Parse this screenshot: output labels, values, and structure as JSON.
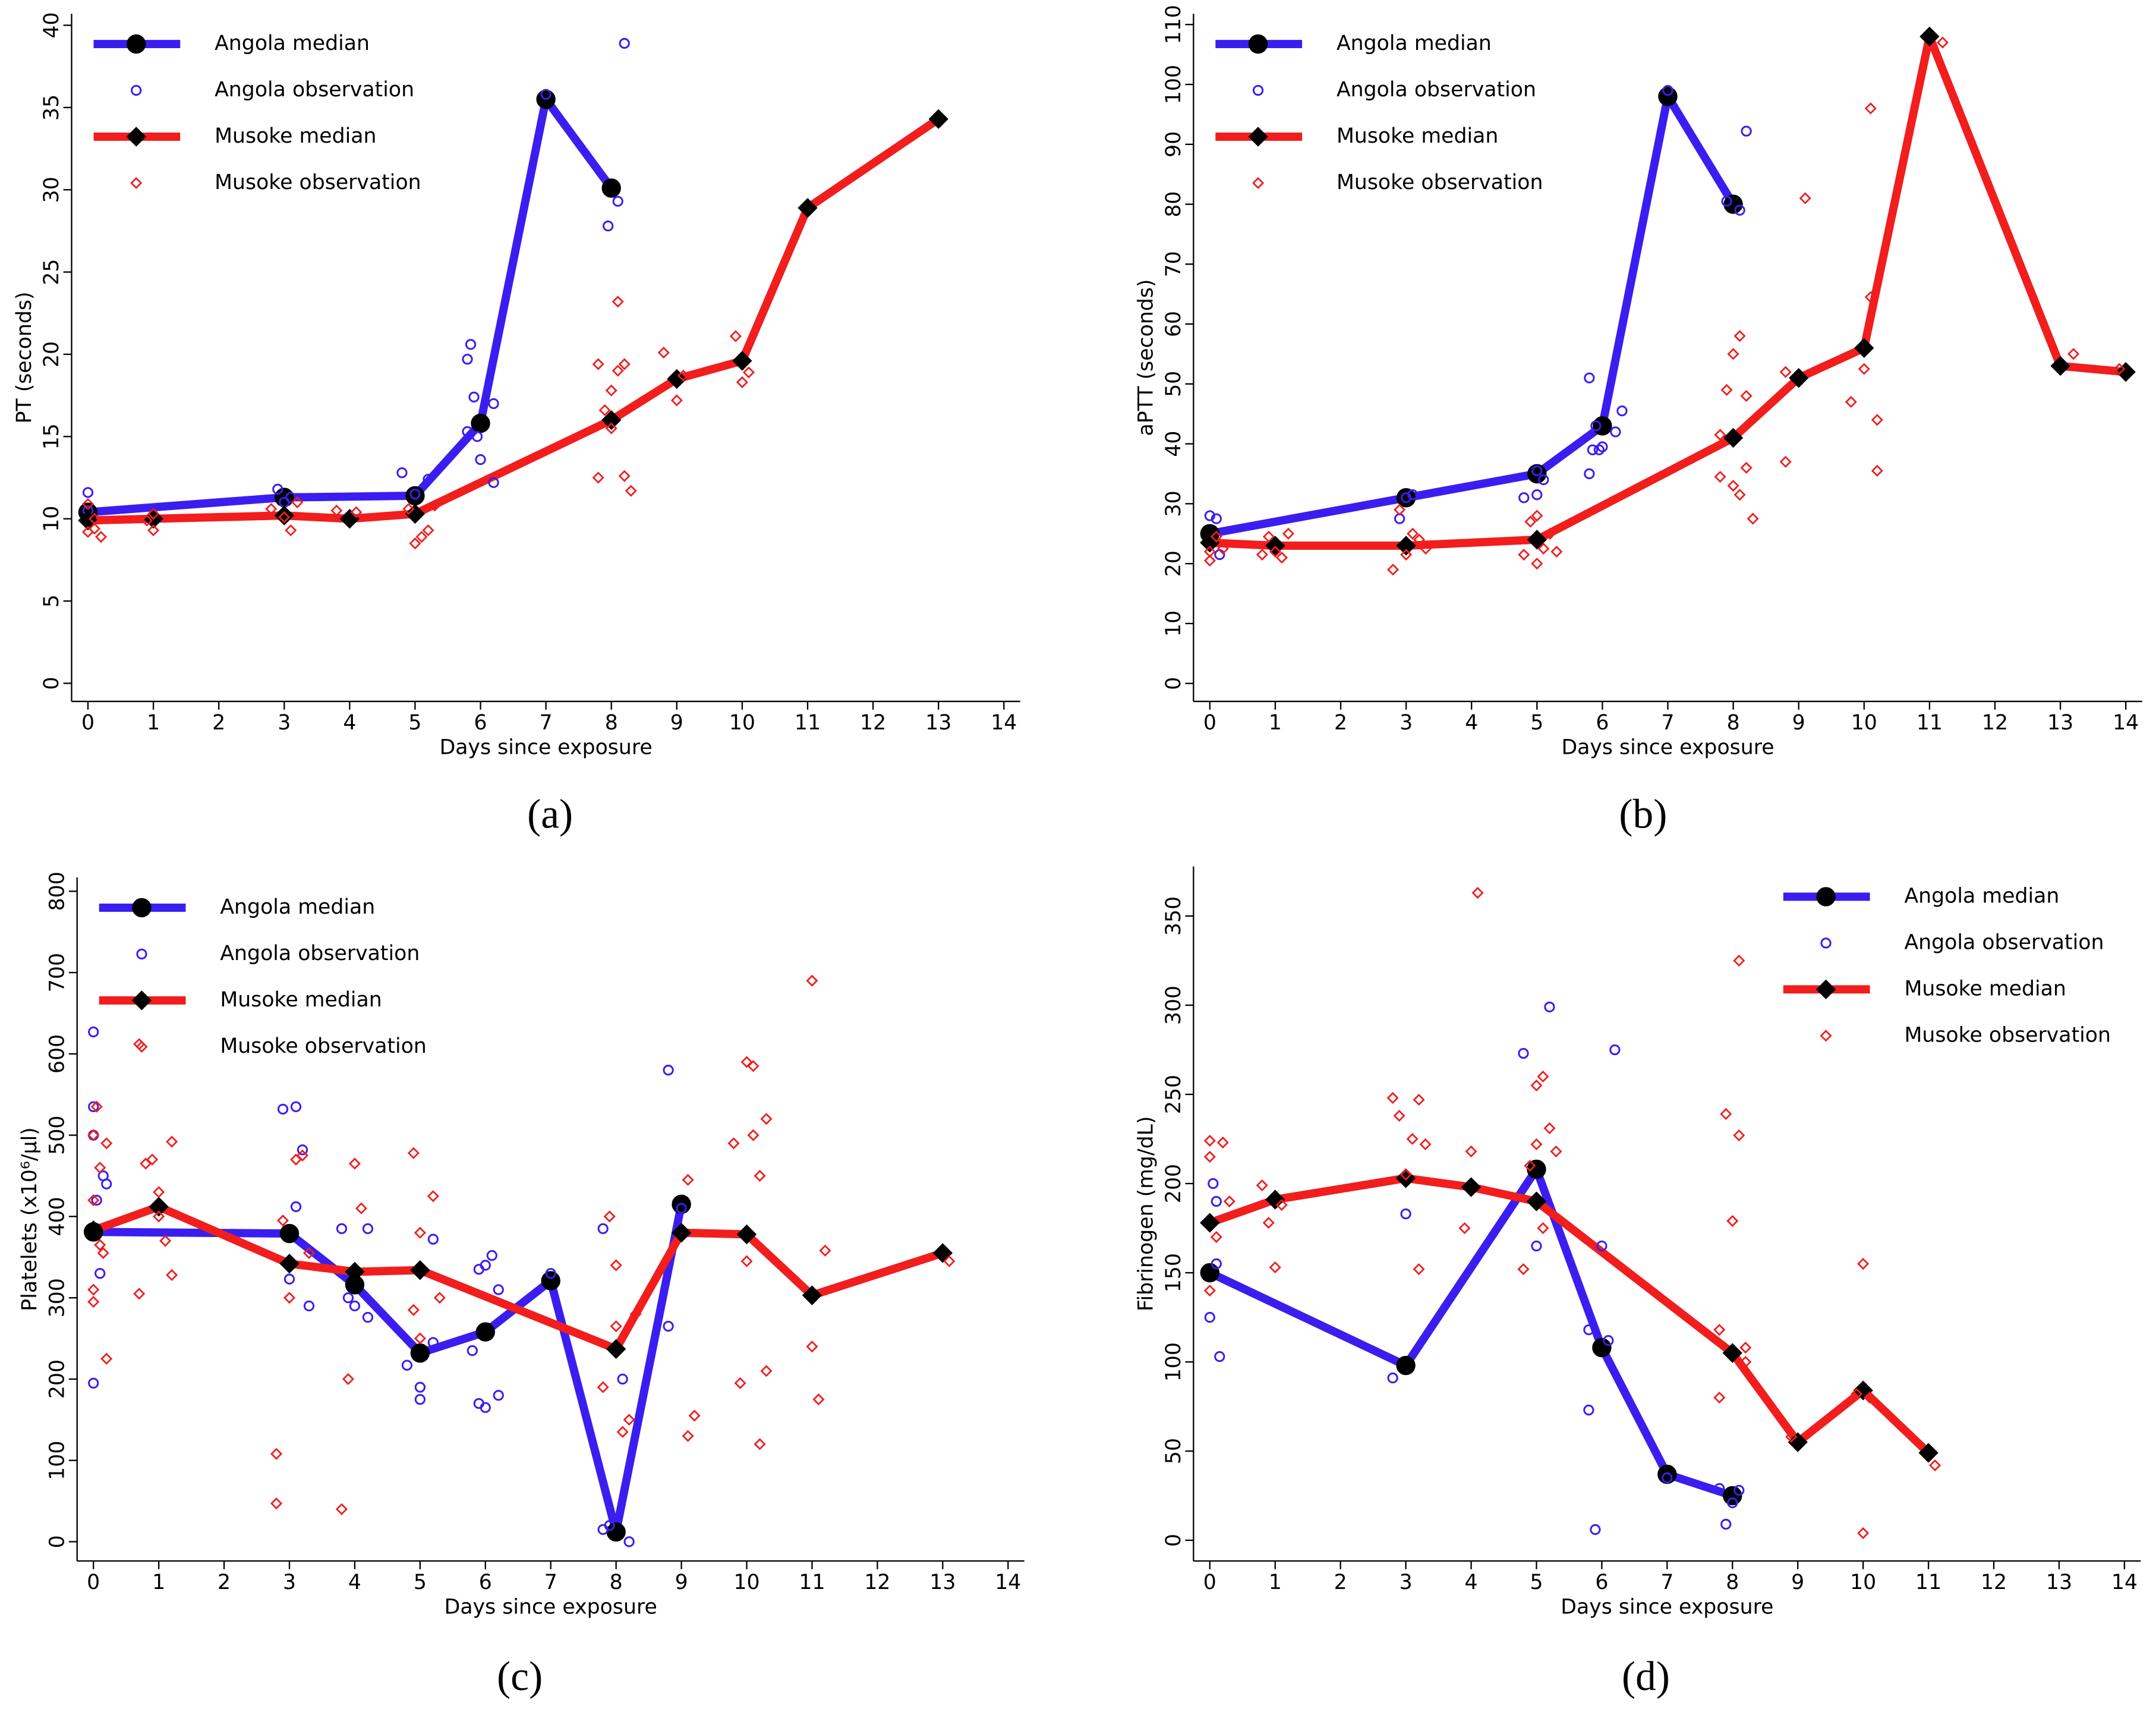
{
  "chart_data": [
    {
      "type": "line",
      "label": "(a)",
      "x_label": "Days since exposure",
      "y_label": "PT (seconds)",
      "legend": "top-left",
      "xlim": [
        -0.25,
        14.25
      ],
      "xticks": [
        0,
        1,
        2,
        3,
        4,
        5,
        6,
        7,
        8,
        9,
        10,
        11,
        12,
        13,
        14
      ],
      "ylim": [
        -1.1,
        40.7
      ],
      "yticks": [
        0,
        5,
        10,
        15,
        20,
        25,
        30,
        35,
        40
      ],
      "series": [
        {
          "name": "Angola median",
          "color": "#3a1ef0",
          "style": "line",
          "marker": "circle",
          "x": [
            0,
            3,
            5,
            6,
            7,
            8
          ],
          "values": [
            10.4,
            11.3,
            11.4,
            15.8,
            35.5,
            30.1
          ]
        },
        {
          "name": "Angola observation",
          "color": "#3a1ef0",
          "style": "markers",
          "marker": "circle",
          "x": [
            0,
            0,
            0,
            2.9,
            3,
            3.1,
            4.8,
            5,
            5.2,
            5.8,
            5.8,
            5.85,
            5.9,
            5.95,
            6,
            6.2,
            6.2,
            7,
            7.95,
            8.1,
            8.2
          ],
          "values": [
            11.6,
            10.5,
            9.8,
            11.8,
            11,
            11.3,
            12.8,
            11.5,
            12.4,
            15.3,
            19.7,
            20.6,
            17.4,
            15,
            13.6,
            17,
            12.2,
            35.8,
            27.8,
            29.3,
            38.9
          ]
        },
        {
          "name": "Musoke median",
          "color": "#f21d1d",
          "style": "line",
          "marker": "diamond",
          "x": [
            0,
            1,
            3,
            4,
            5,
            8,
            9,
            10,
            11,
            13
          ],
          "values": [
            9.9,
            10,
            10.2,
            10,
            10.3,
            16,
            18.5,
            19.6,
            28.9,
            34.3
          ]
        },
        {
          "name": "Musoke observation",
          "color": "#f21d1d",
          "style": "markers",
          "marker": "diamond",
          "x": [
            0,
            0,
            0.1,
            0.1,
            0.2,
            0.9,
            1,
            1,
            2.8,
            3,
            3.1,
            3.2,
            3.8,
            4.1,
            4.9,
            5,
            5.1,
            5.2,
            5.3,
            7.8,
            7.8,
            7.9,
            8,
            8,
            8.1,
            8.1,
            8.2,
            8.2,
            8.3,
            8.8,
            9,
            9.1,
            9.9,
            10,
            10.1
          ],
          "values": [
            9.2,
            10.9,
            10,
            9.4,
            8.9,
            9.9,
            9.3,
            10.3,
            10.6,
            10.1,
            9.3,
            11,
            10.5,
            10.4,
            10.6,
            8.5,
            8.9,
            9.3,
            10.8,
            12.5,
            19.4,
            16.6,
            17.8,
            15.5,
            23.2,
            19,
            12.6,
            19.4,
            11.7,
            20.1,
            17.2,
            18.7,
            21.1,
            18.3,
            18.9
          ]
        }
      ]
    },
    {
      "type": "line",
      "label": "(b)",
      "x_label": "Days since exposure",
      "y_label": "aPTT (seconds)",
      "legend": "top-left",
      "xlim": [
        -0.25,
        14.25
      ],
      "xticks": [
        0,
        1,
        2,
        3,
        4,
        5,
        6,
        7,
        8,
        9,
        10,
        11,
        12,
        13,
        14
      ],
      "ylim": [
        -3,
        111.8
      ],
      "yticks": [
        0,
        10,
        20,
        30,
        40,
        50,
        60,
        70,
        80,
        90,
        100,
        110
      ],
      "series": [
        {
          "name": "Angola median",
          "color": "#3a1ef0",
          "style": "line",
          "marker": "circle",
          "x": [
            0,
            3,
            5,
            6,
            7,
            8
          ],
          "values": [
            25,
            31,
            35,
            43,
            98,
            80
          ]
        },
        {
          "name": "Angola observation",
          "color": "#3a1ef0",
          "style": "markers",
          "marker": "circle",
          "x": [
            0,
            0.1,
            0.15,
            2.9,
            3,
            3.1,
            4.8,
            5,
            5,
            5.1,
            5.8,
            5.8,
            5.85,
            5.9,
            5.95,
            6,
            6.2,
            6.3,
            7,
            7.9,
            8.1,
            8.2
          ],
          "values": [
            28,
            27.5,
            21.5,
            27.5,
            31,
            31.5,
            31,
            35.5,
            31.5,
            34,
            51,
            35,
            39,
            43,
            39,
            39.5,
            42,
            45.5,
            99,
            80.5,
            79,
            92.2
          ]
        },
        {
          "name": "Musoke median",
          "color": "#f21d1d",
          "style": "line",
          "marker": "diamond",
          "x": [
            0,
            1,
            3,
            5,
            8,
            9,
            10,
            11,
            13,
            14
          ],
          "values": [
            23.5,
            23,
            23,
            24,
            41,
            51,
            56,
            108,
            53,
            52
          ]
        },
        {
          "name": "Musoke observation",
          "color": "#f21d1d",
          "style": "markers",
          "marker": "diamond",
          "x": [
            0,
            0,
            0.1,
            0.2,
            0.8,
            0.9,
            1,
            1.1,
            1.2,
            2.8,
            2.9,
            3,
            3.1,
            3.2,
            3.3,
            4.8,
            4.9,
            5,
            5,
            5.1,
            5.2,
            5.3,
            7.8,
            7.8,
            7.9,
            8,
            8,
            8.1,
            8.1,
            8.2,
            8.2,
            8.3,
            8.8,
            8.8,
            9.1,
            9.8,
            10,
            10.1,
            10.1,
            10.2,
            10.2,
            11.2,
            13.2,
            13.9
          ],
          "values": [
            20.5,
            22,
            24.5,
            22.5,
            21.5,
            24.5,
            22,
            21,
            25,
            19,
            29,
            21.5,
            25,
            24,
            22.5,
            21.5,
            27,
            28,
            20,
            22.5,
            25,
            22,
            34.5,
            41.5,
            49,
            55,
            33,
            58,
            31.5,
            48,
            36,
            27.5,
            52,
            37,
            81,
            47,
            52.5,
            96,
            64.5,
            44,
            35.5,
            107,
            55,
            52.5
          ]
        }
      ]
    },
    {
      "type": "line",
      "label": "(c)",
      "x_label": "Days since exposure",
      "y_label": "Platelets (x10⁶/μl)",
      "legend": "top-left",
      "xlim": [
        -0.25,
        14.25
      ],
      "xticks": [
        0,
        1,
        2,
        3,
        4,
        5,
        6,
        7,
        8,
        9,
        10,
        11,
        12,
        13,
        14
      ],
      "ylim": [
        -23.7,
        817
      ],
      "yticks": [
        0,
        100,
        200,
        300,
        400,
        500,
        600,
        700,
        800
      ],
      "series": [
        {
          "name": "Angola median",
          "color": "#3a1ef0",
          "style": "line",
          "marker": "circle",
          "x": [
            0,
            3,
            4,
            5,
            6,
            7,
            8,
            9
          ],
          "values": [
            381,
            379,
            316,
            232,
            258,
            321,
            12,
            415
          ]
        },
        {
          "name": "Angola observation",
          "color": "#3a1ef0",
          "style": "markers",
          "marker": "circle",
          "x": [
            0,
            0,
            0,
            0,
            0.05,
            0.1,
            0.15,
            0.2,
            2.9,
            3.1,
            3.2,
            3.1,
            3,
            3.3,
            3.8,
            3.9,
            4,
            4.2,
            4.2,
            4.8,
            5,
            5,
            5.2,
            5.2,
            5.8,
            5.9,
            5.9,
            6,
            6,
            6.1,
            6.2,
            6.2,
            7,
            7.8,
            7.8,
            7.9,
            8.1,
            8.2,
            8.8,
            8.8,
            9
          ],
          "values": [
            627,
            535,
            500,
            195,
            420,
            330,
            450,
            440,
            532,
            535,
            482,
            412,
            323,
            290,
            385,
            300,
            290,
            385,
            276,
            217,
            175,
            190,
            372,
            245,
            235,
            335,
            170,
            340,
            165,
            352,
            180,
            310,
            330,
            385,
            15,
            20,
            200,
            0,
            580,
            265,
            410
          ]
        },
        {
          "name": "Musoke median",
          "color": "#f21d1d",
          "style": "line",
          "marker": "diamond",
          "x": [
            0,
            1,
            3,
            4,
            5,
            8,
            9,
            10,
            11,
            13
          ],
          "values": [
            383,
            412,
            342,
            332,
            334,
            237,
            380,
            378,
            303,
            355
          ]
        },
        {
          "name": "Musoke observation",
          "color": "#f21d1d",
          "style": "markers",
          "marker": "diamond",
          "x": [
            0,
            0,
            0,
            0,
            0.05,
            0.1,
            0.1,
            0.15,
            0.2,
            0.2,
            0.7,
            0.7,
            0.8,
            0.9,
            1,
            1,
            1.1,
            1.2,
            1.2,
            2.8,
            2.8,
            2.9,
            3,
            3.1,
            3.2,
            3.3,
            3.8,
            3.9,
            4,
            4.1,
            4.9,
            4.9,
            5,
            5,
            5.2,
            5.3,
            7.8,
            7.9,
            8,
            8,
            8.1,
            8.2,
            8.3,
            9.1,
            9.1,
            9.2,
            9.9,
            9.8,
            10,
            10,
            10.1,
            10.1,
            10.2,
            10.2,
            10.3,
            10.3,
            11,
            11,
            11.1,
            11.2,
            13.1
          ],
          "values": [
            295,
            310,
            420,
            500,
            535,
            460,
            365,
            355,
            225,
            490,
            612,
            305,
            465,
            470,
            400,
            430,
            370,
            492,
            328,
            108,
            47,
            395,
            300,
            470,
            475,
            355,
            40,
            200,
            465,
            410,
            478,
            285,
            380,
            250,
            425,
            300,
            190,
            400,
            340,
            265,
            135,
            150,
            280,
            445,
            130,
            155,
            195,
            490,
            590,
            345,
            500,
            585,
            450,
            120,
            520,
            210,
            690,
            240,
            175,
            358,
            345
          ]
        }
      ]
    },
    {
      "type": "line",
      "label": "(d)",
      "x_label": "Days since exposure",
      "y_label": "Fibrinogen (mg/dL)",
      "legend": "top-right",
      "xlim": [
        -0.25,
        14.25
      ],
      "xticks": [
        0,
        1,
        2,
        3,
        4,
        5,
        6,
        7,
        8,
        9,
        10,
        11,
        12,
        13,
        14
      ],
      "ylim": [
        -11.6,
        377.8
      ],
      "yticks": [
        0,
        50,
        100,
        150,
        200,
        250,
        300,
        350
      ],
      "series": [
        {
          "name": "Angola median",
          "color": "#3a1ef0",
          "style": "line",
          "marker": "circle",
          "x": [
            0,
            3,
            5,
            6,
            7,
            8
          ],
          "values": [
            150,
            98,
            208,
            108,
            37,
            25
          ]
        },
        {
          "name": "Angola observation",
          "color": "#3a1ef0",
          "style": "markers",
          "marker": "circle",
          "x": [
            0,
            0.05,
            0.1,
            0.15,
            0.1,
            2.8,
            3,
            4.8,
            5,
            5.2,
            5.8,
            5.8,
            5.9,
            6,
            6.1,
            6.2,
            7,
            7.8,
            7.9,
            8,
            8.1
          ],
          "values": [
            125,
            200,
            190,
            103,
            155,
            91,
            183,
            273,
            165,
            299,
            118,
            73,
            6,
            165,
            112,
            275,
            35,
            29,
            9,
            21,
            28
          ]
        },
        {
          "name": "Musoke median",
          "color": "#f21d1d",
          "style": "line",
          "marker": "diamond",
          "x": [
            0,
            1,
            3,
            4,
            5,
            8,
            9,
            10,
            11
          ],
          "values": [
            178,
            191,
            203,
            198,
            190,
            105,
            55,
            84,
            49
          ]
        },
        {
          "name": "Musoke observation",
          "color": "#f21d1d",
          "style": "markers",
          "marker": "diamond",
          "x": [
            0,
            0,
            0,
            0.1,
            0.2,
            0.3,
            1,
            1.1,
            0.8,
            0.9,
            2.8,
            2.9,
            3,
            3.1,
            3.2,
            3.2,
            3.3,
            3.9,
            4,
            4.1,
            4.8,
            4.9,
            5,
            5,
            5.1,
            5.2,
            5.3,
            5.1,
            7.8,
            7.8,
            7.9,
            8,
            8.1,
            8.1,
            8.2,
            8.2,
            8.9,
            9.9,
            10,
            10,
            10.1,
            11.1
          ],
          "values": [
            224,
            215,
            140,
            170,
            223,
            190,
            153,
            188,
            199,
            178,
            248,
            238,
            205,
            225,
            247,
            152,
            222,
            175,
            218,
            363,
            152,
            210,
            255,
            222,
            260,
            231,
            218,
            175,
            118,
            80,
            239,
            179,
            227,
            325,
            100,
            108,
            58,
            82,
            155,
            4,
            80,
            42
          ]
        }
      ]
    }
  ]
}
